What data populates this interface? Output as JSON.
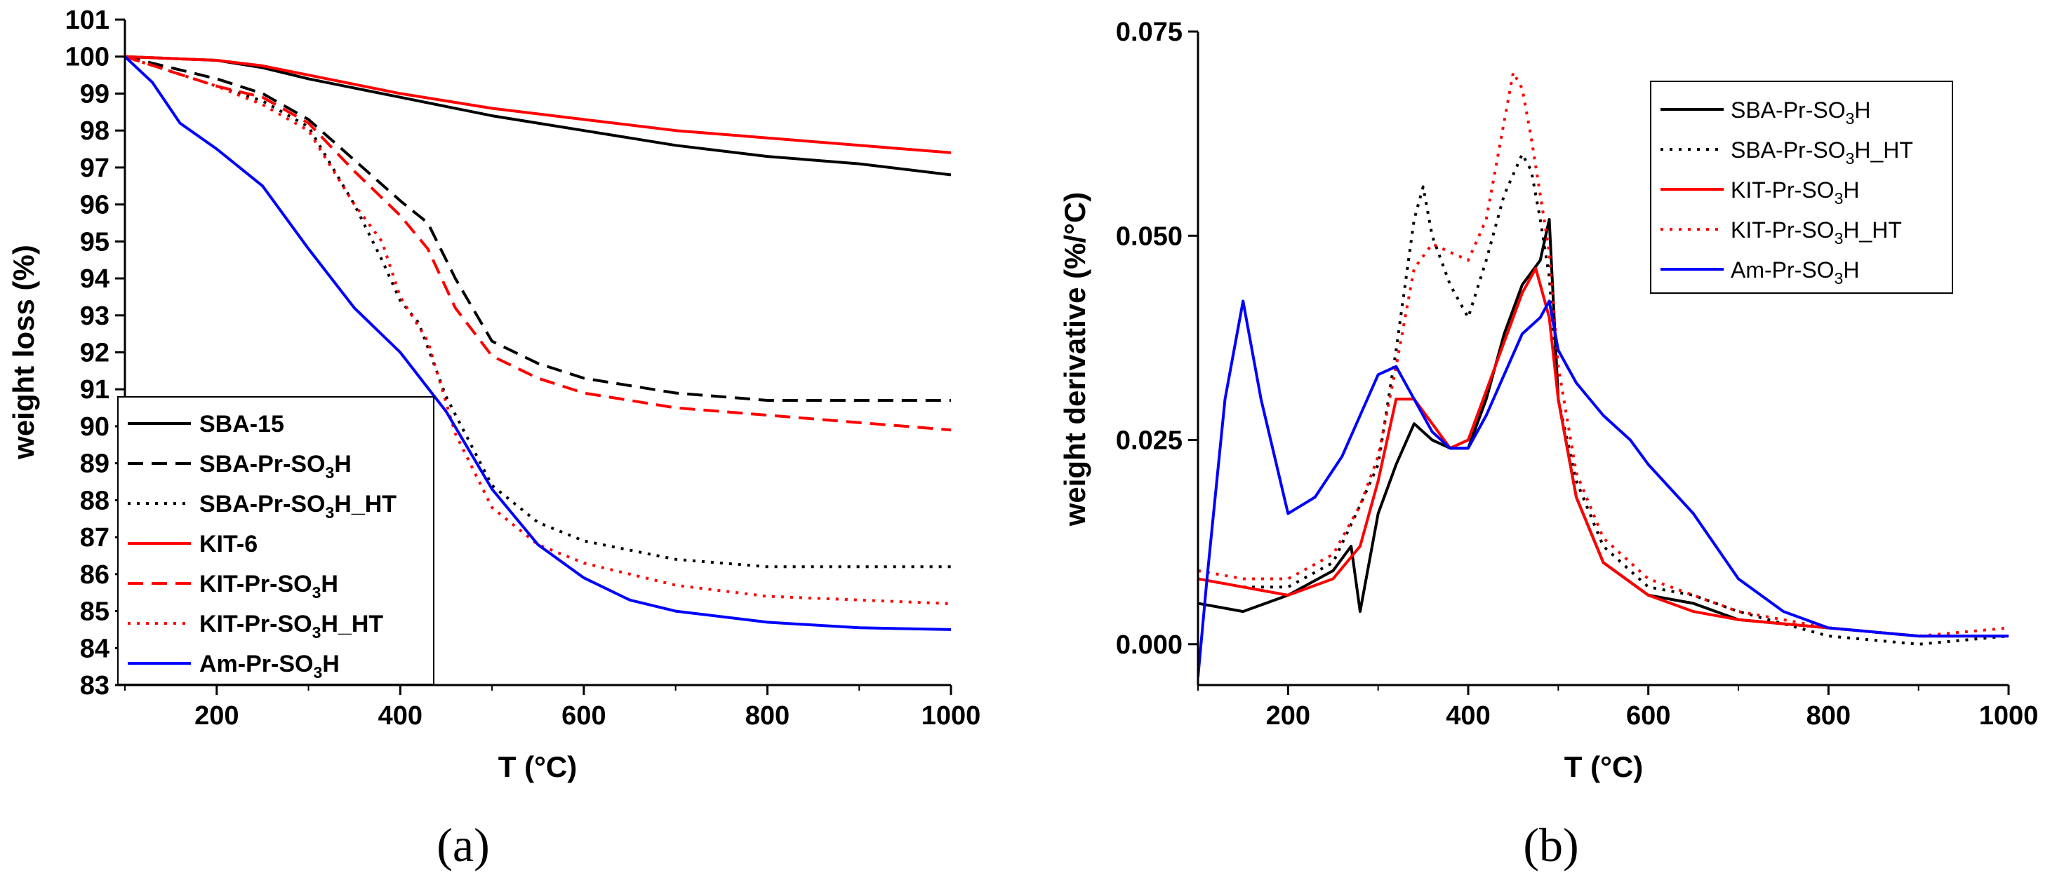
{
  "colors": {
    "black": "#000000",
    "red": "#ff0000",
    "blue": "#0000ff"
  },
  "chart_data": [
    {
      "id": "a",
      "type": "line",
      "panel_label": "(a)",
      "title": "",
      "xlabel": "T (°C)",
      "ylabel": "weight loss (%)",
      "xlim": [
        100,
        1000
      ],
      "ylim": [
        83,
        101
      ],
      "xticks": [
        200,
        400,
        600,
        800,
        1000
      ],
      "yticks": [
        83,
        84,
        85,
        86,
        87,
        88,
        89,
        90,
        91,
        92,
        93,
        94,
        95,
        96,
        97,
        98,
        99,
        100,
        101
      ],
      "legend_position": "bottom-left",
      "series": [
        {
          "name": "SBA-15",
          "label_main": "SBA-15",
          "label_sub": "",
          "label_tail": "",
          "color": "#000000",
          "dash": "solid",
          "x": [
            100,
            150,
            200,
            250,
            300,
            400,
            500,
            600,
            700,
            800,
            900,
            1000
          ],
          "y": [
            100,
            99.95,
            99.9,
            99.7,
            99.4,
            98.9,
            98.4,
            98.0,
            97.6,
            97.3,
            97.1,
            96.8
          ]
        },
        {
          "name": "SBA-Pr-SO3H",
          "label_main": "SBA-Pr-SO",
          "label_sub": "3",
          "label_tail": "H",
          "color": "#000000",
          "dash": "dashed",
          "x": [
            100,
            150,
            200,
            250,
            300,
            350,
            400,
            430,
            460,
            500,
            550,
            600,
            700,
            800,
            900,
            1000
          ],
          "y": [
            100,
            99.7,
            99.4,
            99.0,
            98.3,
            97.2,
            96.1,
            95.5,
            94.0,
            92.3,
            91.7,
            91.3,
            90.9,
            90.7,
            90.7,
            90.7
          ]
        },
        {
          "name": "SBA-Pr-SO3H_HT",
          "label_main": "SBA-Pr-SO",
          "label_sub": "3",
          "label_tail": "H_HT",
          "color": "#000000",
          "dash": "dotted",
          "x": [
            100,
            150,
            200,
            250,
            300,
            350,
            380,
            400,
            420,
            450,
            500,
            550,
            600,
            700,
            800,
            900,
            1000
          ],
          "y": [
            100,
            99.6,
            99.2,
            98.8,
            98.1,
            96.0,
            94.5,
            93.4,
            92.8,
            90.8,
            88.4,
            87.4,
            86.9,
            86.4,
            86.2,
            86.2,
            86.2
          ]
        },
        {
          "name": "KIT-6",
          "label_main": "KIT-6",
          "label_sub": "",
          "label_tail": "",
          "color": "#ff0000",
          "dash": "solid",
          "x": [
            100,
            150,
            200,
            250,
            300,
            400,
            500,
            600,
            700,
            800,
            900,
            1000
          ],
          "y": [
            100,
            99.95,
            99.9,
            99.75,
            99.5,
            99.0,
            98.6,
            98.3,
            98.0,
            97.8,
            97.6,
            97.4
          ]
        },
        {
          "name": "KIT-Pr-SO3H",
          "label_main": "KIT-Pr-SO",
          "label_sub": "3",
          "label_tail": "H",
          "color": "#ff0000",
          "dash": "dashed",
          "x": [
            100,
            150,
            200,
            250,
            300,
            350,
            400,
            430,
            460,
            500,
            550,
            600,
            700,
            800,
            900,
            1000
          ],
          "y": [
            100,
            99.6,
            99.2,
            98.9,
            98.2,
            96.9,
            95.7,
            94.8,
            93.2,
            91.9,
            91.3,
            90.9,
            90.5,
            90.3,
            90.1,
            89.9
          ]
        },
        {
          "name": "KIT-Pr-SO3H_HT",
          "label_main": "KIT-Pr-SO",
          "label_sub": "3",
          "label_tail": "H_HT",
          "color": "#ff0000",
          "dash": "dotted",
          "x": [
            100,
            150,
            200,
            250,
            300,
            350,
            380,
            400,
            430,
            460,
            500,
            550,
            600,
            700,
            800,
            900,
            1000
          ],
          "y": [
            100,
            99.6,
            99.2,
            98.7,
            98.0,
            96.0,
            95.0,
            93.5,
            92.3,
            89.8,
            87.8,
            86.8,
            86.3,
            85.7,
            85.4,
            85.3,
            85.2
          ]
        },
        {
          "name": "Am-Pr-SO3H",
          "label_main": "Am-Pr-SO",
          "label_sub": "3",
          "label_tail": "H",
          "color": "#0000ff",
          "dash": "solid",
          "x": [
            100,
            130,
            160,
            200,
            250,
            300,
            350,
            400,
            450,
            500,
            550,
            600,
            650,
            700,
            800,
            900,
            1000
          ],
          "y": [
            100,
            99.3,
            98.2,
            97.5,
            96.5,
            94.8,
            93.2,
            92.0,
            90.4,
            88.3,
            86.8,
            85.9,
            85.3,
            85.0,
            84.7,
            84.55,
            84.5
          ]
        }
      ]
    },
    {
      "id": "b",
      "type": "line",
      "panel_label": "(b)",
      "title": "",
      "xlabel": "T (°C)",
      "ylabel": "weight derivative (%/°C)",
      "xlim": [
        100,
        1000
      ],
      "ylim": [
        -0.005,
        0.075
      ],
      "xticks": [
        200,
        400,
        600,
        800,
        1000
      ],
      "yticks": [
        0.0,
        0.025,
        0.05,
        0.075
      ],
      "ytick_labels": [
        "0.000",
        "0.025",
        "0.050",
        "0.075"
      ],
      "legend_position": "top-right",
      "series": [
        {
          "name": "SBA-Pr-SO3H",
          "label_main": "SBA-Pr-SO",
          "label_sub": "3",
          "label_tail": "H",
          "color": "#000000",
          "dash": "solid",
          "x": [
            100,
            150,
            200,
            250,
            270,
            280,
            300,
            320,
            340,
            360,
            380,
            400,
            420,
            440,
            460,
            480,
            490,
            500,
            520,
            550,
            600,
            650,
            700,
            800,
            900,
            1000
          ],
          "y": [
            0.005,
            0.004,
            0.006,
            0.009,
            0.012,
            0.004,
            0.016,
            0.022,
            0.027,
            0.025,
            0.024,
            0.024,
            0.03,
            0.038,
            0.044,
            0.047,
            0.052,
            0.03,
            0.018,
            0.01,
            0.006,
            0.005,
            0.003,
            0.002,
            0.001,
            0.001
          ]
        },
        {
          "name": "SBA-Pr-SO3H_HT",
          "label_main": "SBA-Pr-SO",
          "label_sub": "3",
          "label_tail": "H_HT",
          "color": "#000000",
          "dash": "dotted",
          "x": [
            100,
            150,
            200,
            250,
            280,
            300,
            320,
            340,
            350,
            360,
            380,
            400,
            420,
            440,
            460,
            470,
            480,
            490,
            500,
            520,
            550,
            600,
            650,
            700,
            800,
            900,
            1000
          ],
          "y": [
            0.008,
            0.007,
            0.007,
            0.01,
            0.017,
            0.022,
            0.036,
            0.052,
            0.056,
            0.05,
            0.044,
            0.04,
            0.047,
            0.055,
            0.06,
            0.058,
            0.052,
            0.045,
            0.03,
            0.02,
            0.012,
            0.007,
            0.006,
            0.004,
            0.001,
            0.0,
            0.001
          ]
        },
        {
          "name": "KIT-Pr-SO3H",
          "label_main": "KIT-Pr-SO",
          "label_sub": "3",
          "label_tail": "H",
          "color": "#ff0000",
          "dash": "solid",
          "x": [
            100,
            150,
            200,
            250,
            280,
            300,
            320,
            340,
            360,
            380,
            400,
            420,
            440,
            460,
            475,
            490,
            500,
            520,
            550,
            600,
            650,
            700,
            800,
            900,
            1000
          ],
          "y": [
            0.008,
            0.007,
            0.006,
            0.008,
            0.012,
            0.02,
            0.03,
            0.03,
            0.027,
            0.024,
            0.025,
            0.031,
            0.037,
            0.043,
            0.046,
            0.04,
            0.03,
            0.018,
            0.01,
            0.006,
            0.004,
            0.003,
            0.002,
            0.001,
            0.001
          ]
        },
        {
          "name": "KIT-Pr-SO3H_HT",
          "label_main": "KIT-Pr-SO",
          "label_sub": "3",
          "label_tail": "H_HT",
          "color": "#ff0000",
          "dash": "dotted",
          "x": [
            100,
            150,
            200,
            250,
            280,
            300,
            320,
            340,
            360,
            380,
            400,
            420,
            440,
            450,
            460,
            470,
            480,
            490,
            500,
            520,
            550,
            600,
            650,
            700,
            800,
            900,
            1000
          ],
          "y": [
            0.009,
            0.008,
            0.008,
            0.011,
            0.017,
            0.023,
            0.034,
            0.046,
            0.049,
            0.048,
            0.047,
            0.052,
            0.064,
            0.07,
            0.068,
            0.062,
            0.055,
            0.048,
            0.034,
            0.021,
            0.013,
            0.008,
            0.006,
            0.004,
            0.002,
            0.001,
            0.002
          ]
        },
        {
          "name": "Am-Pr-SO3H",
          "label_main": "Am-Pr-SO",
          "label_sub": "3",
          "label_tail": "H",
          "color": "#0000ff",
          "dash": "solid",
          "x": [
            100,
            110,
            130,
            150,
            170,
            200,
            230,
            260,
            280,
            300,
            320,
            340,
            360,
            380,
            400,
            420,
            440,
            460,
            480,
            490,
            500,
            520,
            550,
            580,
            600,
            650,
            700,
            750,
            800,
            900,
            1000
          ],
          "y": [
            -0.004,
            0.008,
            0.03,
            0.042,
            0.03,
            0.016,
            0.018,
            0.023,
            0.028,
            0.033,
            0.034,
            0.03,
            0.026,
            0.024,
            0.024,
            0.028,
            0.033,
            0.038,
            0.04,
            0.042,
            0.036,
            0.032,
            0.028,
            0.025,
            0.022,
            0.016,
            0.008,
            0.004,
            0.002,
            0.001,
            0.001
          ]
        }
      ]
    }
  ]
}
